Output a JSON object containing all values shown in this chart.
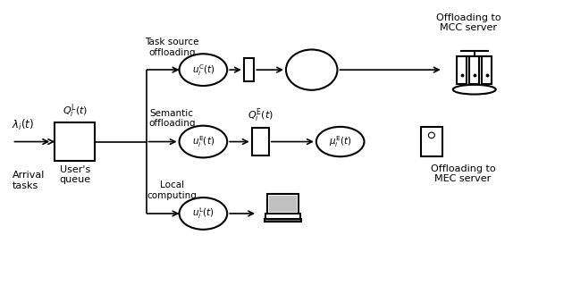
{
  "bg_color": "#ffffff",
  "fig_width": 6.4,
  "fig_height": 3.29,
  "arrow_color": "#000000",
  "text_color": "#000000",
  "labels": {
    "arrival_tasks": "Arrival\ntasks",
    "users_queue": "User's\nqueue",
    "task_source": "Task source\noffloading",
    "semantic": "Semantic\noffloading",
    "local_computing": "Local\ncomputing",
    "q_l": "$Q_i^\\mathrm{L}(t)$",
    "q_e": "$Q_i^\\mathrm{E}(t)$",
    "u_c": "$u_i^\\mathrm{C}(t)$",
    "u_e": "$u_i^\\mathrm{E}(t)$",
    "u_l": "$u_i^\\mathrm{L}(t)$",
    "mu_e": "$\\mu_i^\\mathrm{E}(t)$",
    "lambda": "$\\lambda_i(t)$",
    "mcc": "Offloading to\nMCC server",
    "mec": "Offloading to\nMEC server"
  },
  "y_top": 4.2,
  "y_mid": 2.85,
  "y_bot": 1.5,
  "xlim": [
    0,
    10
  ],
  "ylim": [
    0,
    5.5
  ]
}
